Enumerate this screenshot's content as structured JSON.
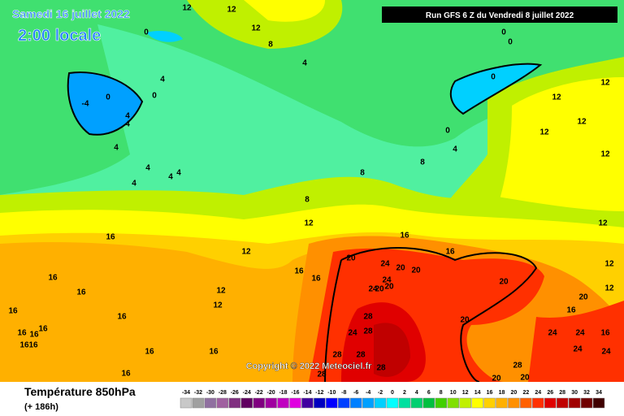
{
  "header": {
    "date": "Samedi 16 juillet 2022",
    "time": "2:00 locale",
    "run": "Run GFS 6 Z du Vendredi 8 juillet 2022",
    "copyright": "Copyright © 2022 Meteociel.fr"
  },
  "footer": {
    "title": "Température 850hPa",
    "lead": "(+ 186h)"
  },
  "legend": {
    "values": [
      -34,
      -32,
      -30,
      -28,
      -26,
      -24,
      -22,
      -20,
      -18,
      -16,
      -14,
      -12,
      -10,
      -8,
      -6,
      -4,
      -2,
      0,
      2,
      4,
      6,
      8,
      10,
      12,
      14,
      16,
      18,
      20,
      22,
      24,
      26,
      28,
      30,
      32,
      34
    ],
    "colors": [
      "#c8c8c8",
      "#a0a0a0",
      "#9070a0",
      "#a060a0",
      "#803080",
      "#600060",
      "#800080",
      "#a000a0",
      "#c000c0",
      "#e000e0",
      "#4000a0",
      "#0000c0",
      "#0000ff",
      "#0040ff",
      "#0080ff",
      "#00a0ff",
      "#00d0ff",
      "#00ffff",
      "#00e0a0",
      "#00d070",
      "#00c040",
      "#40d000",
      "#80e000",
      "#c0f000",
      "#ffff00",
      "#ffd000",
      "#ffb000",
      "#ff9000",
      "#ff6000",
      "#ff3000",
      "#e00000",
      "#c00000",
      "#a00000",
      "#700000",
      "#400000"
    ]
  },
  "contour_labels": [
    0,
    12,
    12,
    12,
    8,
    4,
    4,
    -4,
    0,
    0,
    4,
    4,
    4,
    4,
    4,
    4,
    4,
    0,
    0,
    0,
    0,
    4,
    8,
    8,
    8,
    12,
    12,
    16,
    16,
    16,
    16,
    16,
    16,
    16,
    16,
    12,
    12,
    16,
    16,
    20,
    24,
    20,
    20,
    16,
    16,
    24,
    20,
    24,
    20,
    20,
    20,
    28,
    24,
    28,
    28,
    28,
    28,
    28,
    20,
    20,
    28,
    24,
    24,
    24,
    24,
    16,
    16,
    20,
    12,
    12,
    12,
    12,
    12,
    12,
    12,
    12,
    16,
    16,
    16,
    16,
    16
  ]
}
